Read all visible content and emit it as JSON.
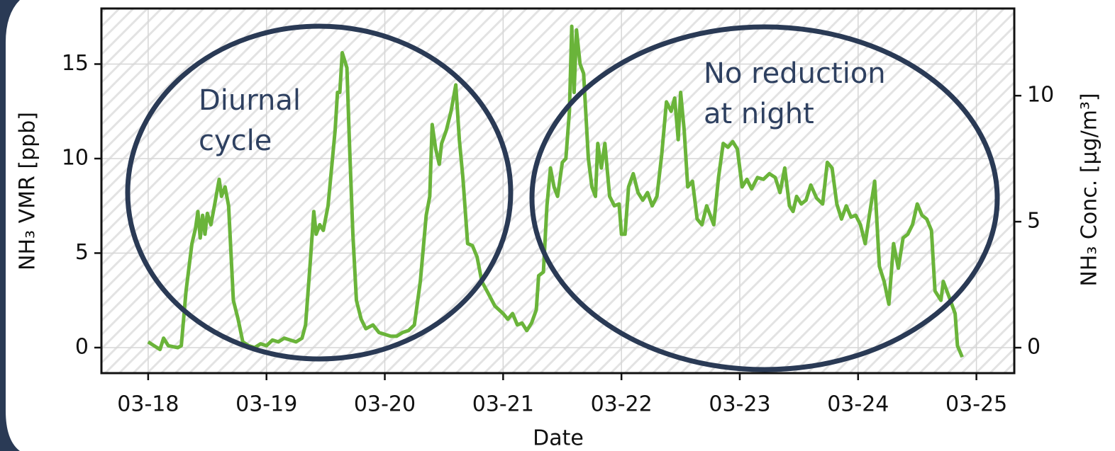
{
  "chart_data": {
    "type": "line",
    "xlabel": "Date",
    "ylabel": "NH₃ VMR [ppb]",
    "y2label": "NH₃ Conc. [µg/m³]",
    "color": "#6ab43a",
    "grid": true,
    "xlim": [
      17.605,
      25.32
    ],
    "ylim": [
      -1.35,
      17.94
    ],
    "y2lim": [
      -1.01,
      13.46
    ],
    "xticks": [
      {
        "value": 18,
        "label": "03-18"
      },
      {
        "value": 19,
        "label": "03-19"
      },
      {
        "value": 20,
        "label": "03-20"
      },
      {
        "value": 21,
        "label": "03-21"
      },
      {
        "value": 22,
        "label": "03-22"
      },
      {
        "value": 23,
        "label": "03-23"
      },
      {
        "value": 24,
        "label": "03-24"
      },
      {
        "value": 25,
        "label": "03-25"
      }
    ],
    "yticks": [
      0,
      5,
      10,
      15
    ],
    "y2ticks": [
      0,
      5,
      10
    ],
    "annotations": [
      {
        "lines": [
          "Diurnal",
          "cycle"
        ]
      },
      {
        "lines": [
          "No reduction",
          "at night"
        ]
      }
    ],
    "x": [
      18.0,
      18.05,
      18.1,
      18.13,
      18.17,
      18.25,
      18.28,
      18.32,
      18.37,
      18.4,
      18.42,
      18.44,
      18.46,
      18.48,
      18.5,
      18.53,
      18.56,
      18.6,
      18.62,
      18.65,
      18.68,
      18.72,
      18.76,
      18.8,
      18.85,
      18.9,
      18.95,
      19.0,
      19.05,
      19.1,
      19.15,
      19.2,
      19.25,
      19.3,
      19.33,
      19.37,
      19.4,
      19.42,
      19.45,
      19.48,
      19.52,
      19.55,
      19.58,
      19.6,
      19.62,
      19.64,
      19.68,
      19.7,
      19.73,
      19.76,
      19.8,
      19.84,
      19.9,
      19.95,
      20.0,
      20.05,
      20.1,
      20.15,
      20.2,
      20.25,
      20.3,
      20.35,
      20.38,
      20.4,
      20.43,
      20.46,
      20.48,
      20.52,
      20.56,
      20.6,
      20.63,
      20.66,
      20.7,
      20.74,
      20.78,
      20.82,
      20.88,
      20.93,
      21.0,
      21.04,
      21.08,
      21.12,
      21.16,
      21.2,
      21.24,
      21.28,
      21.3,
      21.34,
      21.37,
      21.4,
      21.43,
      21.46,
      21.5,
      21.53,
      21.56,
      21.58,
      21.6,
      21.62,
      21.65,
      21.68,
      21.72,
      21.75,
      21.78,
      21.8,
      21.83,
      21.86,
      21.9,
      21.94,
      21.98,
      22.0,
      22.03,
      22.06,
      22.1,
      22.14,
      22.18,
      22.22,
      22.26,
      22.3,
      22.34,
      22.38,
      22.42,
      22.45,
      22.48,
      22.5,
      22.53,
      22.56,
      22.6,
      22.64,
      22.68,
      22.72,
      22.78,
      22.82,
      22.86,
      22.9,
      22.94,
      22.98,
      23.02,
      23.06,
      23.1,
      23.15,
      23.2,
      23.25,
      23.3,
      23.34,
      23.38,
      23.42,
      23.45,
      23.48,
      23.52,
      23.56,
      23.6,
      23.65,
      23.7,
      23.74,
      23.78,
      23.82,
      23.86,
      23.9,
      23.94,
      23.98,
      24.02,
      24.06,
      24.1,
      24.14,
      24.18,
      24.22,
      24.26,
      24.3,
      24.34,
      24.38,
      24.42,
      24.46,
      24.5,
      24.54,
      24.58,
      24.62,
      24.65,
      24.7,
      24.72,
      24.78,
      24.82,
      24.84,
      24.88
    ],
    "values": [
      0.3,
      0.1,
      -0.1,
      0.5,
      0.1,
      0.0,
      0.1,
      3.0,
      5.5,
      6.3,
      7.2,
      5.8,
      7.0,
      6.0,
      7.1,
      6.5,
      7.5,
      8.9,
      8.0,
      8.5,
      7.5,
      2.5,
      1.5,
      0.3,
      0.1,
      0.0,
      0.2,
      0.1,
      0.4,
      0.3,
      0.5,
      0.4,
      0.3,
      0.5,
      1.2,
      4.5,
      7.2,
      6.0,
      6.5,
      6.2,
      7.5,
      9.5,
      11.5,
      13.5,
      13.5,
      15.6,
      14.8,
      11.0,
      6.0,
      2.5,
      1.5,
      1.0,
      1.2,
      0.8,
      0.7,
      0.6,
      0.6,
      0.8,
      0.9,
      1.2,
      3.5,
      7.0,
      8.0,
      11.8,
      10.5,
      9.7,
      10.8,
      11.5,
      12.5,
      13.9,
      11.0,
      9.0,
      5.5,
      5.4,
      4.8,
      3.5,
      2.8,
      2.2,
      1.8,
      1.5,
      1.8,
      1.2,
      1.3,
      0.9,
      1.3,
      2.0,
      3.8,
      4.0,
      7.5,
      9.5,
      8.5,
      8.0,
      9.8,
      10.0,
      12.5,
      17.0,
      13.5,
      16.8,
      15.0,
      14.5,
      10.0,
      8.5,
      8.0,
      10.8,
      9.5,
      10.8,
      8.0,
      7.5,
      7.6,
      6.0,
      6.0,
      8.5,
      9.2,
      8.2,
      7.8,
      8.2,
      7.5,
      8.0,
      10.2,
      13.0,
      12.5,
      13.2,
      11.0,
      13.5,
      11.5,
      8.5,
      8.8,
      6.8,
      6.5,
      7.5,
      6.5,
      9.0,
      10.8,
      10.6,
      10.9,
      10.5,
      8.5,
      8.9,
      8.4,
      9.0,
      8.9,
      9.2,
      9.0,
      8.2,
      9.5,
      7.5,
      7.2,
      8.0,
      7.6,
      7.8,
      8.6,
      7.9,
      7.6,
      9.8,
      9.5,
      7.6,
      6.8,
      7.5,
      6.9,
      7.0,
      6.5,
      5.5,
      7.2,
      8.8,
      4.3,
      3.5,
      2.3,
      5.5,
      4.2,
      5.8,
      6.0,
      6.5,
      7.6,
      7.0,
      6.8,
      6.2,
      3.0,
      2.5,
      3.5,
      2.5,
      1.8,
      0.1,
      -0.5
    ]
  }
}
